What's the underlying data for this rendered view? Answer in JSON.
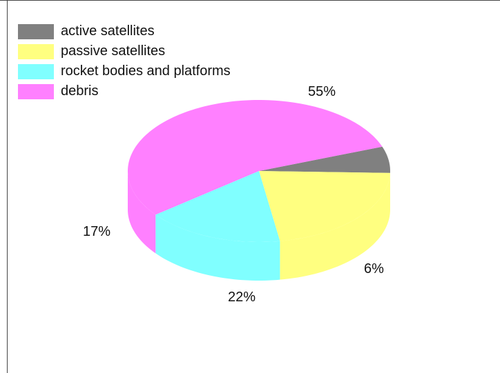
{
  "chart_data": {
    "type": "pie",
    "title": "",
    "series": [
      {
        "label": "active satellites",
        "value": 6,
        "percent_label": "6%",
        "color": "#808080"
      },
      {
        "label": "passive satellites",
        "value": 22,
        "percent_label": "22%",
        "color": "#ffff80"
      },
      {
        "label": "rocket bodies and platforms",
        "value": 17,
        "percent_label": "17%",
        "color": "#80ffff"
      },
      {
        "label": "debris",
        "value": 55,
        "percent_label": "55%",
        "color": "#ff80ff"
      }
    ],
    "legend_position": "top-left",
    "style": "3d-cylinder"
  }
}
